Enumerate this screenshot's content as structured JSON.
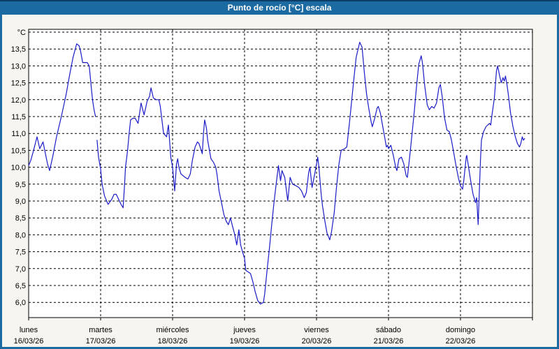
{
  "window": {
    "title": "Punto de rocío [°C] escala",
    "title_bar_color": "#1b6aa1",
    "border_color": "#1b6aa1",
    "content_bg": "#f6f5ef",
    "plot_bg": "#ffffff"
  },
  "chart_data": {
    "type": "line",
    "title": "Punto de rocío [°C] escala",
    "grid": {
      "style": "dashed",
      "color": "#000000",
      "shown": true
    },
    "legend": "none",
    "line_color": "#1c1cc8",
    "y_axis": {
      "unit": "°C",
      "top_gridline_value": 14.0,
      "bottom_gridline_value": 6.0,
      "step": 0.5,
      "tick_labels": [
        "13,5",
        "13,0",
        "12,5",
        "12,0",
        "11,5",
        "11,0",
        "10,5",
        "10,0",
        "9,5",
        "9,0",
        "8,5",
        "8,0",
        "7,5",
        "7,0",
        "6,5",
        "6,0"
      ]
    },
    "x_axis": {
      "days": [
        {
          "name": "lunes",
          "date": "16/03/26"
        },
        {
          "name": "martes",
          "date": "17/03/26"
        },
        {
          "name": "miércoles",
          "date": "18/03/26"
        },
        {
          "name": "jueves",
          "date": "19/03/26"
        },
        {
          "name": "viernes",
          "date": "20/03/26"
        },
        {
          "name": "sábado",
          "date": "21/03/26"
        },
        {
          "name": "domingo",
          "date": "22/03/26"
        }
      ]
    },
    "series": [
      {
        "name": "Punto de rocío",
        "unit": "°C",
        "x_unit": "hours_from_monday_00:00",
        "note": "gap in data lunes ~22:20-22:50",
        "segments": [
          [
            [
              0,
              10.05
            ],
            [
              0.7,
              10.2
            ],
            [
              1.5,
              10.45
            ],
            [
              2.8,
              10.9
            ],
            [
              3.7,
              10.55
            ],
            [
              4.8,
              10.75
            ],
            [
              5.6,
              10.4
            ],
            [
              6.3,
              10.1
            ],
            [
              7,
              9.9
            ],
            [
              8,
              10.3
            ],
            [
              9.3,
              10.9
            ],
            [
              10.9,
              11.5
            ],
            [
              12.5,
              12.15
            ],
            [
              13.7,
              12.75
            ],
            [
              14.8,
              13.25
            ],
            [
              16,
              13.65
            ],
            [
              16.8,
              13.6
            ],
            [
              17.3,
              13.45
            ],
            [
              18,
              13.1
            ],
            [
              19.5,
              13.1
            ],
            [
              20.2,
              13
            ],
            [
              20.9,
              12.35
            ],
            [
              21.3,
              12
            ],
            [
              21.8,
              11.7
            ],
            [
              22.3,
              11.5
            ]
          ],
          [
            [
              22.8,
              10.8
            ],
            [
              23.3,
              10.3
            ],
            [
              24,
              9.95
            ],
            [
              24.5,
              9.5
            ],
            [
              25.3,
              9.15
            ],
            [
              26,
              9
            ],
            [
              26.5,
              8.9
            ],
            [
              27.7,
              9.05
            ],
            [
              28.5,
              9.2
            ],
            [
              29.2,
              9.2
            ],
            [
              30,
              9.05
            ],
            [
              30.8,
              8.9
            ],
            [
              31.5,
              8.8
            ],
            [
              32,
              9.5
            ],
            [
              32.3,
              10
            ],
            [
              33,
              10.5
            ],
            [
              33.5,
              11
            ],
            [
              34,
              11.4
            ],
            [
              34.8,
              11.45
            ],
            [
              35.5,
              11.45
            ],
            [
              36.5,
              11.3
            ],
            [
              37.5,
              11.9
            ],
            [
              38.5,
              11.55
            ],
            [
              39.5,
              11.95
            ],
            [
              40.3,
              12.1
            ],
            [
              40.8,
              12.35
            ],
            [
              41.6,
              12.05
            ],
            [
              42.5,
              12
            ],
            [
              43.4,
              12
            ],
            [
              43.9,
              11.8
            ],
            [
              45,
              11
            ],
            [
              45.5,
              10.95
            ],
            [
              46,
              10.9
            ],
            [
              46.6,
              11.25
            ],
            [
              47,
              10.8
            ],
            [
              47.4,
              10.3
            ],
            [
              48,
              10
            ],
            [
              48.4,
              9.6
            ],
            [
              48.7,
              9.3
            ],
            [
              49.3,
              10.1
            ],
            [
              49.7,
              10.25
            ],
            [
              50.1,
              10
            ],
            [
              50.8,
              9.8
            ],
            [
              52.2,
              9.7
            ],
            [
              53.1,
              9.65
            ],
            [
              53.9,
              9.8
            ],
            [
              54.6,
              10.2
            ],
            [
              55.5,
              10.6
            ],
            [
              56.3,
              10.75
            ],
            [
              56.8,
              10.7
            ],
            [
              57.9,
              10.4
            ],
            [
              58.3,
              11
            ],
            [
              58.7,
              11.4
            ],
            [
              59.3,
              11.15
            ],
            [
              59.7,
              10.8
            ],
            [
              60.1,
              10.6
            ],
            [
              60.8,
              10.25
            ],
            [
              61.6,
              10.15
            ],
            [
              62.4,
              10
            ],
            [
              62.8,
              9.8
            ],
            [
              63.5,
              9.3
            ],
            [
              64.3,
              8.95
            ],
            [
              65.1,
              8.6
            ],
            [
              65.9,
              8.4
            ],
            [
              66.6,
              8.3
            ],
            [
              67.3,
              8.5
            ],
            [
              68,
              8.25
            ],
            [
              68.6,
              8.05
            ],
            [
              69.4,
              7.7
            ],
            [
              70.1,
              8.15
            ],
            [
              70.7,
              7.7
            ],
            [
              71.3,
              7.5
            ],
            [
              72,
              7.3
            ],
            [
              72.4,
              6.95
            ],
            [
              73.2,
              6.9
            ],
            [
              74,
              6.85
            ],
            [
              74.8,
              6.6
            ],
            [
              75.6,
              6.3
            ],
            [
              76.4,
              6.05
            ],
            [
              77.3,
              5.95
            ],
            [
              78.3,
              6
            ],
            [
              78.7,
              6.25
            ],
            [
              79.5,
              6.95
            ],
            [
              80.3,
              7.6
            ],
            [
              81,
              8.25
            ],
            [
              81.8,
              8.95
            ],
            [
              82.6,
              9.55
            ],
            [
              83.3,
              10.05
            ],
            [
              84,
              9.6
            ],
            [
              84.5,
              9.9
            ],
            [
              85.4,
              9.7
            ],
            [
              86.4,
              9
            ],
            [
              87.2,
              9.7
            ],
            [
              88,
              9.5
            ],
            [
              89.2,
              9.45
            ],
            [
              90.1,
              9.4
            ],
            [
              91,
              9.3
            ],
            [
              91.9,
              9.1
            ],
            [
              92.6,
              9.25
            ],
            [
              93.4,
              9.85
            ],
            [
              93.8,
              10
            ],
            [
              94.5,
              9.4
            ],
            [
              95.4,
              9.8
            ],
            [
              96.4,
              10.3
            ],
            [
              96.8,
              10
            ],
            [
              97.2,
              9.55
            ],
            [
              97.6,
              9.15
            ],
            [
              98,
              8.85
            ],
            [
              98.8,
              8.4
            ],
            [
              99.5,
              8.05
            ],
            [
              100.4,
              7.85
            ],
            [
              101,
              8.1
            ],
            [
              101.9,
              8.65
            ],
            [
              102.6,
              9.35
            ],
            [
              103.4,
              10.05
            ],
            [
              104.2,
              10.5
            ],
            [
              105.4,
              10.55
            ],
            [
              106.1,
              10.6
            ],
            [
              106.9,
              11.25
            ],
            [
              107.7,
              11.95
            ],
            [
              108.5,
              12.65
            ],
            [
              109.2,
              13.25
            ],
            [
              110.4,
              13.7
            ],
            [
              111.2,
              13.55
            ],
            [
              111.9,
              12.85
            ],
            [
              112.7,
              12.15
            ],
            [
              113.4,
              11.75
            ],
            [
              114.2,
              11.35
            ],
            [
              114.6,
              11.2
            ],
            [
              115.4,
              11.45
            ],
            [
              116.2,
              11.75
            ],
            [
              116.6,
              11.8
            ],
            [
              117.3,
              11.6
            ],
            [
              118.1,
              11.2
            ],
            [
              118.9,
              10.8
            ],
            [
              119.3,
              10.6
            ],
            [
              119.7,
              10.65
            ],
            [
              120,
              10.55
            ],
            [
              120.8,
              10.65
            ],
            [
              121.6,
              10.35
            ],
            [
              122.4,
              10
            ],
            [
              122.8,
              9.9
            ],
            [
              123.5,
              10.25
            ],
            [
              124.3,
              10.3
            ],
            [
              125.1,
              10.1
            ],
            [
              125.9,
              9.75
            ],
            [
              126.3,
              9.7
            ],
            [
              127,
              10.25
            ],
            [
              127.8,
              10.95
            ],
            [
              128.6,
              11.65
            ],
            [
              129.3,
              12.35
            ],
            [
              130.1,
              13.05
            ],
            [
              130.9,
              13.3
            ],
            [
              131.3,
              13.1
            ],
            [
              132.1,
              12.4
            ],
            [
              132.9,
              11.85
            ],
            [
              133.6,
              11.7
            ],
            [
              134.4,
              11.8
            ],
            [
              135.2,
              11.75
            ],
            [
              136,
              11.9
            ],
            [
              136.8,
              12.35
            ],
            [
              137.3,
              12.45
            ],
            [
              137.9,
              12.1
            ],
            [
              138.7,
              11.45
            ],
            [
              139.5,
              11.1
            ],
            [
              140.3,
              11.05
            ],
            [
              141,
              10.8
            ],
            [
              141.8,
              10.4
            ],
            [
              142.6,
              10
            ],
            [
              143.4,
              9.65
            ],
            [
              144,
              9.45
            ],
            [
              144.7,
              9.35
            ],
            [
              145.1,
              9.6
            ],
            [
              145.9,
              10.3
            ],
            [
              146.1,
              10.35
            ],
            [
              146.7,
              10
            ],
            [
              147.4,
              9.6
            ],
            [
              148.2,
              9.2
            ],
            [
              149,
              8.95
            ],
            [
              149.4,
              9.1
            ],
            [
              149.9,
              8.3
            ],
            [
              150.3,
              9.3
            ],
            [
              150.7,
              10.3
            ],
            [
              151,
              10.8
            ],
            [
              151.7,
              11.05
            ],
            [
              152.5,
              11.2
            ],
            [
              153.7,
              11.3
            ],
            [
              154.1,
              11.25
            ],
            [
              154.5,
              11.55
            ],
            [
              155.3,
              12.05
            ],
            [
              156,
              12.85
            ],
            [
              156.4,
              13
            ],
            [
              157.2,
              12.65
            ],
            [
              157.6,
              12.5
            ],
            [
              158.2,
              12.65
            ],
            [
              158.6,
              12.55
            ],
            [
              159,
              12.7
            ],
            [
              159.5,
              12.45
            ],
            [
              159.9,
              12.2
            ],
            [
              160.7,
              11.6
            ],
            [
              161.5,
              11.2
            ],
            [
              162.3,
              10.9
            ],
            [
              163,
              10.7
            ],
            [
              163.7,
              10.6
            ],
            [
              164.1,
              10.7
            ],
            [
              164.6,
              10.9
            ],
            [
              165,
              10.8
            ],
            [
              165.4,
              10.85
            ]
          ]
        ]
      }
    ]
  }
}
